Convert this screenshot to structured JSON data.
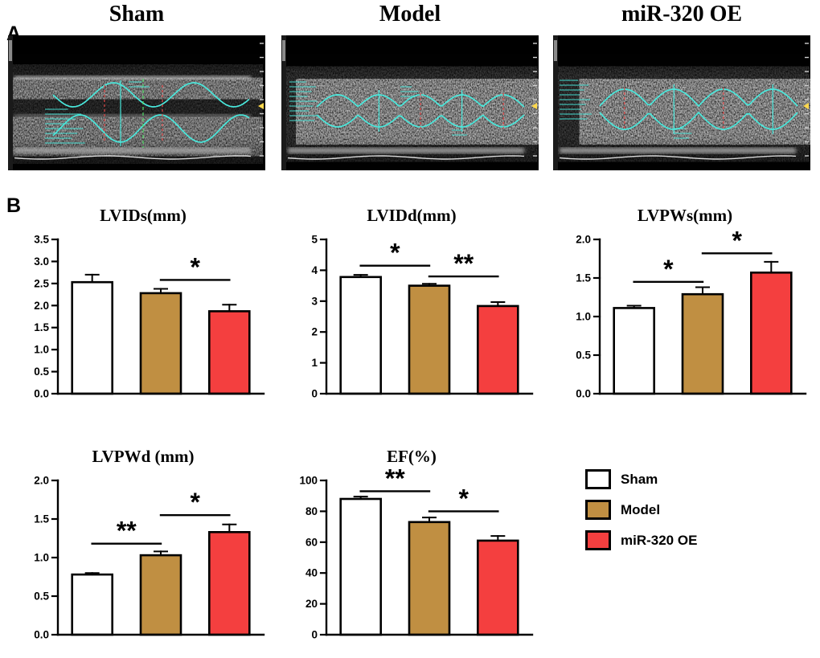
{
  "panelA": {
    "label": "A",
    "images": [
      {
        "title": "Sham"
      },
      {
        "title": "Model"
      },
      {
        "title": "miR-320 OE"
      }
    ]
  },
  "panelB": {
    "label": "B",
    "legend": {
      "position": "right",
      "items": [
        {
          "label": "Sham",
          "color": "#ffffff"
        },
        {
          "label": "Model",
          "color": "#c08f42"
        },
        {
          "label": "miR-320 OE",
          "color": "#f43f3f"
        }
      ]
    }
  },
  "chart_data": [
    {
      "type": "bar",
      "title": "LVIDs(mm)",
      "categories": [
        "Sham",
        "Model",
        "miR-320 OE"
      ],
      "values": [
        2.53,
        2.28,
        1.87
      ],
      "errors": [
        0.17,
        0.1,
        0.15
      ],
      "bar_colors": [
        "#ffffff",
        "#c08f42",
        "#f43f3f"
      ],
      "ylim": [
        0,
        3.5
      ],
      "ytick_step": 0.5,
      "ytick_decimals": 1,
      "grid": false,
      "significance": [
        {
          "between": [
            1,
            2
          ],
          "label": "*",
          "y": 2.58
        }
      ]
    },
    {
      "type": "bar",
      "title": "LVIDd(mm)",
      "categories": [
        "Sham",
        "Model",
        "miR-320 OE"
      ],
      "values": [
        3.78,
        3.5,
        2.84
      ],
      "errors": [
        0.07,
        0.06,
        0.13
      ],
      "bar_colors": [
        "#ffffff",
        "#c08f42",
        "#f43f3f"
      ],
      "ylim": [
        0,
        5
      ],
      "ytick_step": 1,
      "ytick_decimals": 0,
      "grid": false,
      "significance": [
        {
          "between": [
            0,
            1
          ],
          "label": "*",
          "y": 4.15
        },
        {
          "between": [
            1,
            2
          ],
          "label": "**",
          "y": 3.8
        }
      ]
    },
    {
      "type": "bar",
      "title": "LVPWs(mm)",
      "categories": [
        "Sham",
        "Model",
        "miR-320 OE"
      ],
      "values": [
        1.11,
        1.29,
        1.57
      ],
      "errors": [
        0.03,
        0.09,
        0.14
      ],
      "bar_colors": [
        "#ffffff",
        "#c08f42",
        "#f43f3f"
      ],
      "ylim": [
        0,
        2.0
      ],
      "ytick_step": 0.5,
      "ytick_decimals": 1,
      "grid": false,
      "significance": [
        {
          "between": [
            0,
            1
          ],
          "label": "*",
          "y": 1.45
        },
        {
          "between": [
            1,
            2
          ],
          "label": "*",
          "y": 1.82
        }
      ]
    },
    {
      "type": "bar",
      "title": "LVPWd (mm)",
      "categories": [
        "Sham",
        "Model",
        "miR-320 OE"
      ],
      "values": [
        0.78,
        1.03,
        1.33
      ],
      "errors": [
        0.02,
        0.05,
        0.1
      ],
      "bar_colors": [
        "#ffffff",
        "#c08f42",
        "#f43f3f"
      ],
      "ylim": [
        0,
        2.0
      ],
      "ytick_step": 0.5,
      "ytick_decimals": 1,
      "grid": false,
      "significance": [
        {
          "between": [
            0,
            1
          ],
          "label": "**",
          "y": 1.18
        },
        {
          "between": [
            1,
            2
          ],
          "label": "*",
          "y": 1.55
        }
      ]
    },
    {
      "type": "bar",
      "title": "EF(%)",
      "categories": [
        "Sham",
        "Model",
        "miR-320 OE"
      ],
      "values": [
        88,
        73,
        61
      ],
      "errors": [
        1.5,
        3,
        3
      ],
      "bar_colors": [
        "#ffffff",
        "#c08f42",
        "#f43f3f"
      ],
      "ylim": [
        0,
        100
      ],
      "ytick_step": 20,
      "ytick_decimals": 0,
      "grid": false,
      "significance": [
        {
          "between": [
            0,
            1
          ],
          "label": "**",
          "y": 93
        },
        {
          "between": [
            1,
            2
          ],
          "label": "*",
          "y": 80
        }
      ]
    }
  ]
}
